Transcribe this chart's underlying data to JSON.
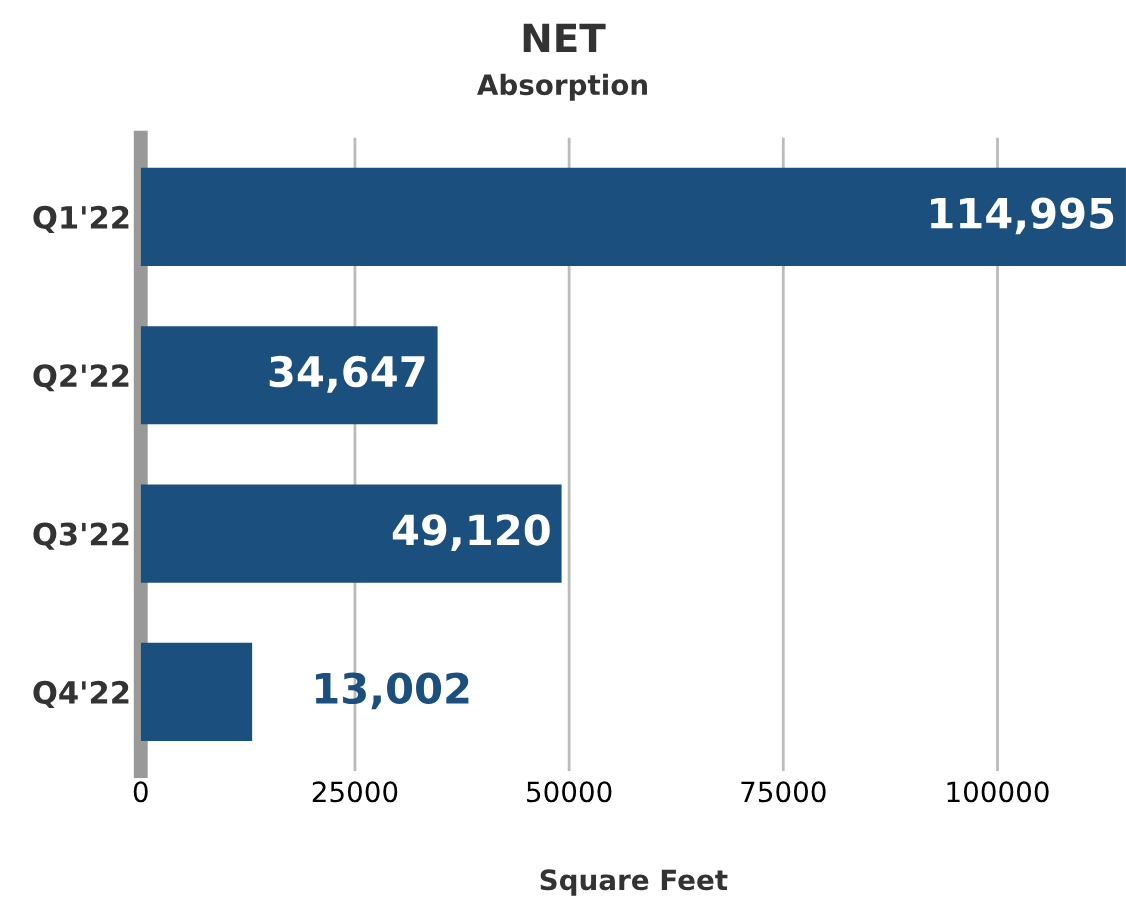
{
  "chart_data": {
    "type": "bar",
    "orientation": "horizontal",
    "title": "NET",
    "subtitle": "Absorption",
    "xlabel": "Square Feet",
    "categories": [
      "Q1'22",
      "Q2'22",
      "Q3'22",
      "Q4'22"
    ],
    "values": [
      114995,
      34647,
      49120,
      13002
    ],
    "value_labels": [
      "114,995",
      "34,647",
      "49,120",
      "13,002"
    ],
    "color": "#1b4f7e",
    "xlim": [
      0,
      115000
    ],
    "xticks": [
      0,
      25000,
      50000,
      75000,
      100000
    ],
    "grid": "x",
    "legend": false
  }
}
